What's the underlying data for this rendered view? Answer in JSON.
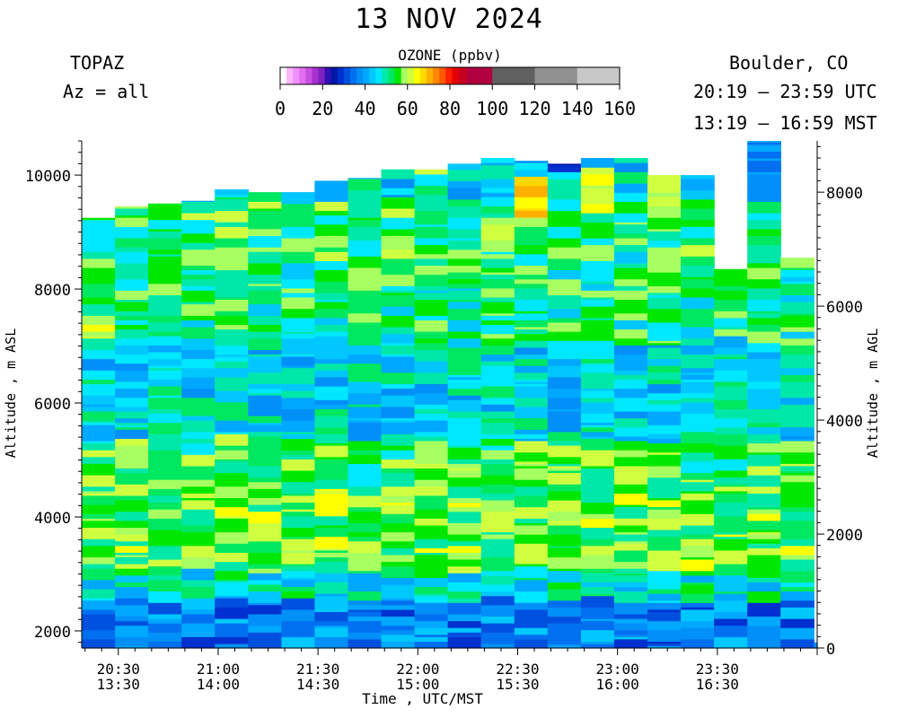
{
  "header": {
    "date": "13 NOV 2024",
    "instrument": "TOPAZ",
    "azimuth": "Az = all",
    "location": "Boulder, CO",
    "utc_range": "20:19 – 23:59 UTC",
    "mst_range": "13:19 – 16:59 MST"
  },
  "colorbar": {
    "title": "OZONE (ppbv)",
    "ticks": [
      "0",
      "20",
      "40",
      "60",
      "80",
      "100",
      "120",
      "140",
      "160"
    ],
    "bins": [
      {
        "from": 0,
        "to": 3,
        "color": "#ffffff"
      },
      {
        "from": 3,
        "to": 6,
        "color": "#ffb4ff"
      },
      {
        "from": 6,
        "to": 9,
        "color": "#f090ff"
      },
      {
        "from": 9,
        "to": 12,
        "color": "#e070f0"
      },
      {
        "from": 12,
        "to": 15,
        "color": "#c850e0"
      },
      {
        "from": 15,
        "to": 18,
        "color": "#a830d0"
      },
      {
        "from": 18,
        "to": 21,
        "color": "#8020c0"
      },
      {
        "from": 21,
        "to": 24,
        "color": "#3010b0"
      },
      {
        "from": 24,
        "to": 27,
        "color": "#0018a8"
      },
      {
        "from": 27,
        "to": 30,
        "color": "#0030d0"
      },
      {
        "from": 30,
        "to": 33,
        "color": "#0050e0"
      },
      {
        "from": 33,
        "to": 36,
        "color": "#0070f0"
      },
      {
        "from": 36,
        "to": 39,
        "color": "#0090f8"
      },
      {
        "from": 39,
        "to": 42,
        "color": "#00a8ff"
      },
      {
        "from": 42,
        "to": 45,
        "color": "#00c8ff"
      },
      {
        "from": 45,
        "to": 48,
        "color": "#00e8ff"
      },
      {
        "from": 48,
        "to": 51,
        "color": "#00e8a8"
      },
      {
        "from": 51,
        "to": 54,
        "color": "#00e860"
      },
      {
        "from": 54,
        "to": 57,
        "color": "#00e800"
      },
      {
        "from": 57,
        "to": 60,
        "color": "#a8ff60"
      },
      {
        "from": 60,
        "to": 63,
        "color": "#d0ff40"
      },
      {
        "from": 63,
        "to": 66,
        "color": "#ffff00"
      },
      {
        "from": 66,
        "to": 69,
        "color": "#ffd800"
      },
      {
        "from": 69,
        "to": 72,
        "color": "#ffb000"
      },
      {
        "from": 72,
        "to": 75,
        "color": "#ff8800"
      },
      {
        "from": 75,
        "to": 78,
        "color": "#ff5800"
      },
      {
        "from": 78,
        "to": 81,
        "color": "#ff2000"
      },
      {
        "from": 81,
        "to": 84,
        "color": "#e80000"
      },
      {
        "from": 84,
        "to": 88,
        "color": "#c80020"
      },
      {
        "from": 88,
        "to": 100,
        "color": "#b00040"
      },
      {
        "from": 100,
        "to": 120,
        "color": "#606060"
      },
      {
        "from": 120,
        "to": 140,
        "color": "#909090"
      },
      {
        "from": 140,
        "to": 160,
        "color": "#c8c8c8"
      }
    ]
  },
  "chart_data": {
    "type": "heatmap",
    "variable": "OZONE (ppbv)",
    "xlabel": "Time , UTC/MST",
    "ylabel_left": "Altitude , m ASL",
    "ylabel_right": "Altitude , m AGL",
    "x_range_utc": [
      "20:19",
      "24:00"
    ],
    "ylim_asl": [
      1700,
      10600
    ],
    "ylim_agl": [
      0,
      8900
    ],
    "y_ticks_left": [
      2000,
      4000,
      6000,
      8000,
      10000
    ],
    "y_ticks_right": [
      0,
      2000,
      4000,
      6000,
      8000
    ],
    "x_ticks": [
      {
        "utc": "20:30",
        "mst": "13:30"
      },
      {
        "utc": "21:00",
        "mst": "14:00"
      },
      {
        "utc": "21:30",
        "mst": "14:30"
      },
      {
        "utc": "22:00",
        "mst": "15:00"
      },
      {
        "utc": "22:30",
        "mst": "15:30"
      },
      {
        "utc": "23:00",
        "mst": "16:00"
      },
      {
        "utc": "23:30",
        "mst": "16:30"
      }
    ],
    "profiles": [
      {
        "start": "20:19",
        "end": "20:29",
        "top_asl": 9250
      },
      {
        "start": "20:29",
        "end": "20:39",
        "top_asl": 9450
      },
      {
        "start": "20:39",
        "end": "20:49",
        "top_asl": 9500
      },
      {
        "start": "20:49",
        "end": "20:59",
        "top_asl": 9550
      },
      {
        "start": "20:59",
        "end": "21:09",
        "top_asl": 9750
      },
      {
        "start": "21:09",
        "end": "21:19",
        "top_asl": 9700
      },
      {
        "start": "21:19",
        "end": "21:29",
        "top_asl": 9700
      },
      {
        "start": "21:29",
        "end": "21:39",
        "top_asl": 9900
      },
      {
        "start": "21:39",
        "end": "21:49",
        "top_asl": 9950
      },
      {
        "start": "21:49",
        "end": "21:59",
        "top_asl": 10100
      },
      {
        "start": "21:59",
        "end": "22:09",
        "top_asl": 10100
      },
      {
        "start": "22:09",
        "end": "22:19",
        "top_asl": 10200
      },
      {
        "start": "22:19",
        "end": "22:29",
        "top_asl": 10300
      },
      {
        "start": "22:29",
        "end": "22:39",
        "top_asl": 10250
      },
      {
        "start": "22:39",
        "end": "22:49",
        "top_asl": 10200
      },
      {
        "start": "22:49",
        "end": "22:59",
        "top_asl": 10300
      },
      {
        "start": "22:59",
        "end": "23:09",
        "top_asl": 10300
      },
      {
        "start": "23:09",
        "end": "23:19",
        "top_asl": 10000
      },
      {
        "start": "23:19",
        "end": "23:29",
        "top_asl": 10000
      },
      {
        "start": "23:29",
        "end": "23:39",
        "top_asl": 8350
      },
      {
        "start": "23:39",
        "end": "23:49",
        "top_asl": 10600
      },
      {
        "start": "23:49",
        "end": "23:59",
        "top_asl": 8550
      },
      {
        "start": "23:59",
        "end": "24:00",
        "top_asl": 1800
      }
    ],
    "altitude_layers": [
      {
        "from_asl": 1700,
        "to_asl": 2500,
        "ozone_ppbv": 36
      },
      {
        "from_asl": 2500,
        "to_asl": 3000,
        "ozone_ppbv": 47
      },
      {
        "from_asl": 3000,
        "to_asl": 4500,
        "ozone_ppbv": 56
      },
      {
        "from_asl": 4500,
        "to_asl": 5300,
        "ozone_ppbv": 55
      },
      {
        "from_asl": 5300,
        "to_asl": 7000,
        "ozone_ppbv": 45
      },
      {
        "from_asl": 7000,
        "to_asl": 8500,
        "ozone_ppbv": 52
      },
      {
        "from_asl": 8500,
        "to_asl": 9500,
        "ozone_ppbv": 53
      },
      {
        "from_asl": 9500,
        "to_asl": 10600,
        "ozone_ppbv": 45
      }
    ],
    "enhanced_regions": [
      {
        "start": "21:59",
        "end": "22:09",
        "from_asl": 9850,
        "to_asl": 10100,
        "ozone_ppbv": 64
      },
      {
        "start": "22:29",
        "end": "22:39",
        "from_asl": 9200,
        "to_asl": 9900,
        "ozone_ppbv": 68
      },
      {
        "start": "22:49",
        "end": "22:59",
        "from_asl": 9300,
        "to_asl": 10050,
        "ozone_ppbv": 63
      },
      {
        "start": "23:09",
        "end": "23:19",
        "from_asl": 9350,
        "to_asl": 9950,
        "ozone_ppbv": 61
      },
      {
        "start": "22:39",
        "end": "22:49",
        "from_asl": 10050,
        "to_asl": 10200,
        "ozone_ppbv": 27
      },
      {
        "start": "22:49",
        "end": "22:59",
        "from_asl": 10150,
        "to_asl": 10300,
        "ozone_ppbv": 27
      },
      {
        "start": "23:39",
        "end": "23:49",
        "from_asl": 9500,
        "to_asl": 10600,
        "ozone_ppbv": 38
      },
      {
        "start": "20:19",
        "end": "20:29",
        "from_asl": 7000,
        "to_asl": 7500,
        "ozone_ppbv": 61
      },
      {
        "start": "21:29",
        "end": "21:39",
        "from_asl": 4100,
        "to_asl": 4500,
        "ozone_ppbv": 62
      },
      {
        "start": "22:19",
        "end": "22:29",
        "from_asl": 3950,
        "to_asl": 4300,
        "ozone_ppbv": 61
      },
      {
        "start": "22:39",
        "end": "22:49",
        "from_asl": 5700,
        "to_asl": 6700,
        "ozone_ppbv": 40
      },
      {
        "start": "23:29",
        "end": "23:39",
        "from_asl": 7500,
        "to_asl": 8350,
        "ozone_ppbv": 54
      }
    ]
  }
}
